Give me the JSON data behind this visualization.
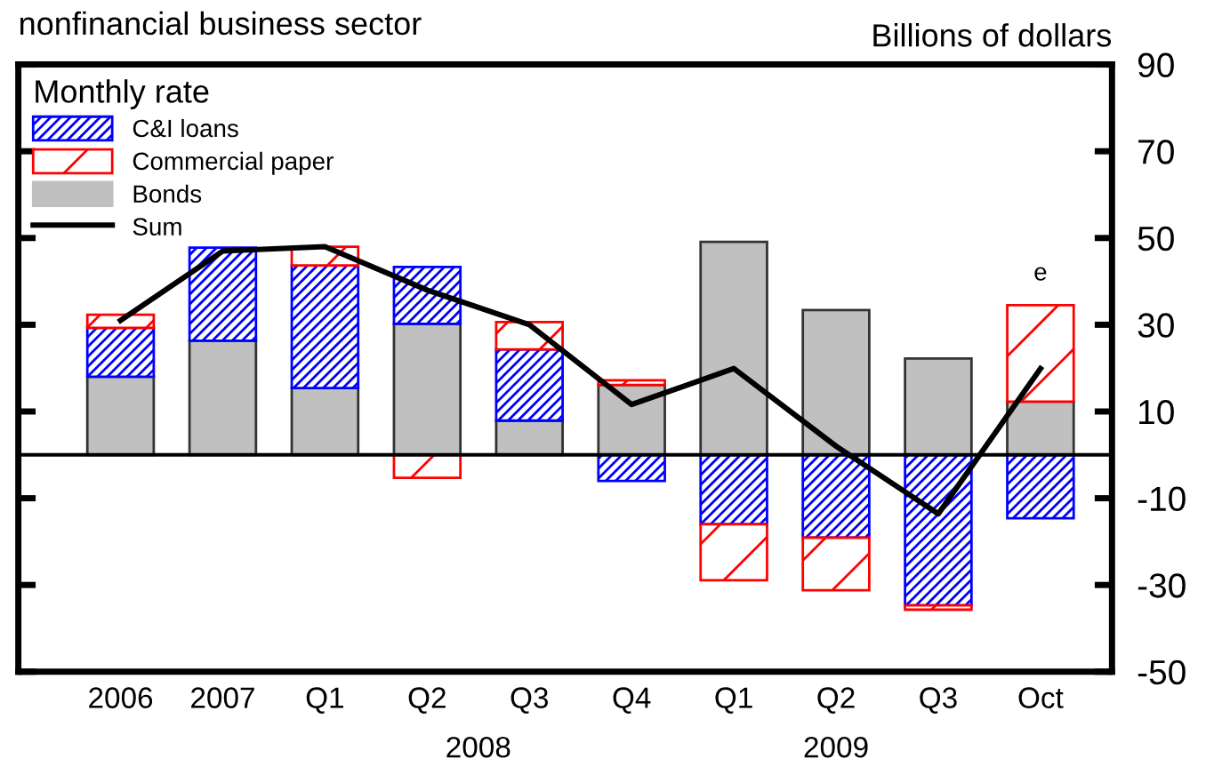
{
  "chart_data": {
    "type": "bar",
    "stacked": true,
    "title": "nonfinancial business sector",
    "ylabel": "Billions of dollars",
    "legend_title": "Monthly rate",
    "legend": "top left",
    "grid": false,
    "categories": [
      "2006",
      "2007",
      "Q1",
      "Q2",
      "Q3",
      "Q4",
      "Q1",
      "Q2",
      "Q3",
      "Oct"
    ],
    "series": [
      {
        "name": "Bonds",
        "color": "#c0c0c0",
        "values": [
          18,
          26.3,
          15.4,
          30.2,
          7.9,
          16.1,
          49.1,
          33.4,
          22.2,
          12.3
        ]
      },
      {
        "name": "C&I loans",
        "color": "#0000ff",
        "values": [
          11.3,
          21.5,
          28.3,
          13.1,
          16.4,
          -6,
          -16,
          -19.1,
          -34.7,
          -14.6
        ]
      },
      {
        "name": "Commercial paper",
        "color": "#ff0000",
        "values": [
          3,
          null,
          4.3,
          -5.3,
          6.3,
          1.1,
          -12.9,
          -12.1,
          -1,
          22.2
        ]
      },
      {
        "name": "Sum",
        "type": "line",
        "color": "#000000",
        "values": [
          31,
          47,
          48,
          38,
          30,
          11.6,
          19.9,
          2,
          -13.6,
          19.9
        ]
      }
    ],
    "ylim": [
      -50,
      90
    ],
    "yticks": [
      -50,
      -30,
      -10,
      10,
      30,
      50,
      70,
      90
    ],
    "annotations": [
      {
        "text": "e",
        "x": "Oct",
        "y": 34.5
      },
      "2008",
      "2009"
    ]
  }
}
